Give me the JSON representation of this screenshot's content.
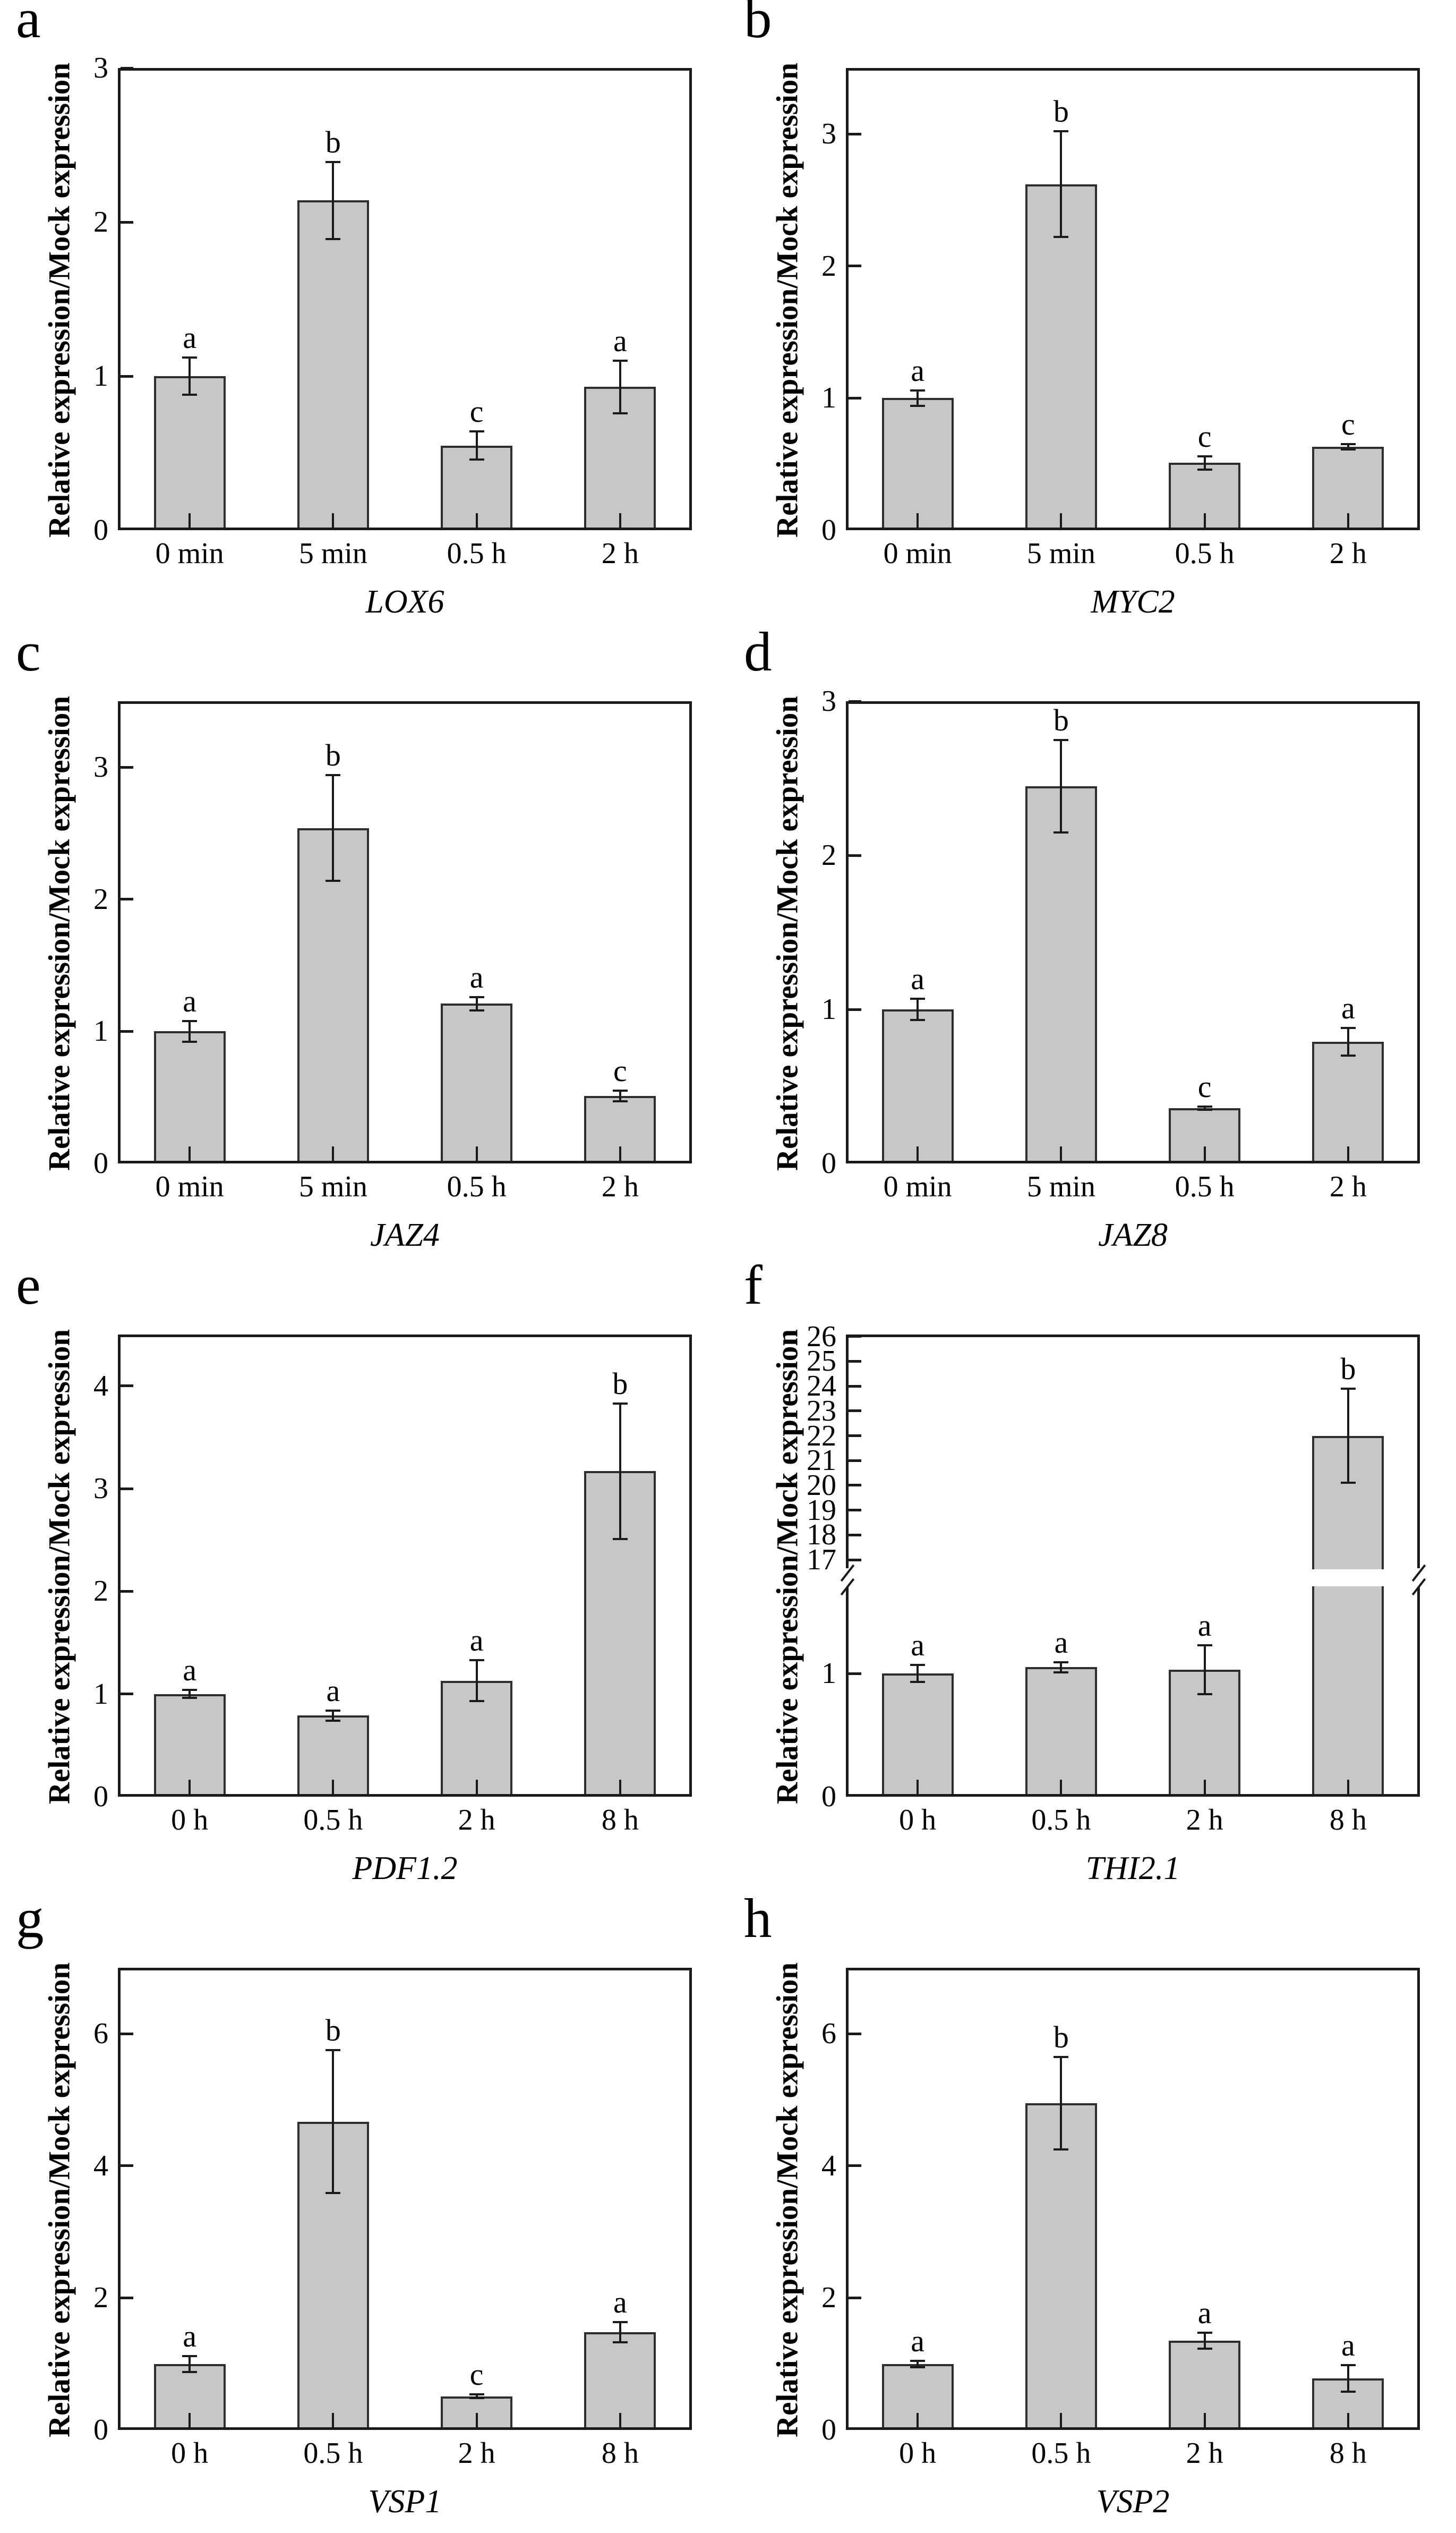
{
  "chart_data": [
    {
      "type": "bar",
      "panel_letter": "a",
      "gene": "LOX6",
      "ylabel": "Relative expression/Mock expression",
      "categories": [
        "0 min",
        "5 min",
        "0.5 h",
        "2 h"
      ],
      "values": [
        1.0,
        2.14,
        0.55,
        0.93
      ],
      "errors": [
        0.12,
        0.25,
        0.09,
        0.17
      ],
      "sig_letters": [
        "a",
        "b",
        "c",
        "a"
      ],
      "ylim": [
        0,
        3.0
      ],
      "yticks": [
        0,
        1,
        2,
        3
      ],
      "axis_break": null,
      "bar_color": "#c7c7c7"
    },
    {
      "type": "bar",
      "panel_letter": "b",
      "gene": "MYC2",
      "ylabel": "Relative expression/Mock expression",
      "categories": [
        "0 min",
        "5 min",
        "0.5 h",
        "2 h"
      ],
      "values": [
        1.0,
        2.62,
        0.51,
        0.63
      ],
      "errors": [
        0.06,
        0.4,
        0.05,
        0.02
      ],
      "sig_letters": [
        "a",
        "b",
        "c",
        "c"
      ],
      "ylim": [
        0,
        3.5
      ],
      "yticks": [
        0,
        1,
        2,
        3
      ],
      "axis_break": null,
      "bar_color": "#c7c7c7"
    },
    {
      "type": "bar",
      "panel_letter": "c",
      "gene": "JAZ4",
      "ylabel": "Relative expression/Mock expression",
      "categories": [
        "0 min",
        "5 min",
        "0.5 h",
        "2 h"
      ],
      "values": [
        1.0,
        2.54,
        1.21,
        0.51
      ],
      "errors": [
        0.08,
        0.4,
        0.05,
        0.04
      ],
      "sig_letters": [
        "a",
        "b",
        "a",
        "c"
      ],
      "ylim": [
        0,
        3.5
      ],
      "yticks": [
        0,
        1,
        2,
        3
      ],
      "axis_break": null,
      "bar_color": "#c7c7c7"
    },
    {
      "type": "bar",
      "panel_letter": "d",
      "gene": "JAZ8",
      "ylabel": "Relative expression/Mock expression",
      "categories": [
        "0 min",
        "5 min",
        "0.5 h",
        "2 h"
      ],
      "values": [
        1.0,
        2.45,
        0.36,
        0.79
      ],
      "errors": [
        0.07,
        0.3,
        0.01,
        0.09
      ],
      "sig_letters": [
        "a",
        "b",
        "c",
        "a"
      ],
      "ylim": [
        0,
        3.0
      ],
      "yticks": [
        0,
        1,
        2,
        3
      ],
      "axis_break": null,
      "bar_color": "#c7c7c7"
    },
    {
      "type": "bar",
      "panel_letter": "e",
      "gene": "PDF1.2",
      "ylabel": "Relative expression/Mock expression",
      "categories": [
        "0 h",
        "0.5 h",
        "2 h",
        "8 h"
      ],
      "values": [
        1.0,
        0.79,
        1.13,
        3.17
      ],
      "errors": [
        0.04,
        0.05,
        0.2,
        0.66
      ],
      "sig_letters": [
        "a",
        "a",
        "a",
        "b"
      ],
      "ylim": [
        0,
        4.5
      ],
      "yticks": [
        0,
        1,
        2,
        3,
        4
      ],
      "axis_break": null,
      "bar_color": "#c7c7c7"
    },
    {
      "type": "bar",
      "panel_letter": "f",
      "gene": "THI2.1",
      "ylabel": "Relative expression/Mock expression",
      "categories": [
        "0 h",
        "0.5 h",
        "2 h",
        "8 h"
      ],
      "values": [
        1.0,
        1.05,
        1.03,
        22.0
      ],
      "errors": [
        0.07,
        0.04,
        0.2,
        1.9
      ],
      "sig_letters": [
        "a",
        "a",
        "a",
        "b"
      ],
      "ylim": [
        0,
        26
      ],
      "yticks": [
        0,
        1,
        17,
        18,
        19,
        20,
        21,
        22,
        23,
        24,
        25,
        26
      ],
      "axis_break": {
        "lower_ticks": [
          0,
          1
        ],
        "upper_ticks": [
          17,
          18,
          19,
          20,
          21,
          22,
          23,
          24,
          25,
          26
        ],
        "break_between": [
          1.7,
          17
        ]
      },
      "bar_color": "#c7c7c7"
    },
    {
      "type": "bar",
      "panel_letter": "g",
      "gene": "VSP1",
      "ylabel": "Relative expression/Mock expression",
      "categories": [
        "0 h",
        "0.5 h",
        "2 h",
        "8 h"
      ],
      "values": [
        1.0,
        4.67,
        0.51,
        1.48
      ],
      "errors": [
        0.12,
        1.08,
        0.03,
        0.15
      ],
      "sig_letters": [
        "a",
        "b",
        "c",
        "a"
      ],
      "ylim": [
        0,
        7.0
      ],
      "yticks": [
        0,
        2,
        4,
        6
      ],
      "axis_break": null,
      "bar_color": "#c7c7c7"
    },
    {
      "type": "bar",
      "panel_letter": "h",
      "gene": "VSP2",
      "ylabel": "Relative expression/Mock expression",
      "categories": [
        "0 h",
        "0.5 h",
        "2 h",
        "8 h"
      ],
      "values": [
        1.0,
        4.95,
        1.35,
        0.78
      ],
      "errors": [
        0.05,
        0.7,
        0.12,
        0.2
      ],
      "sig_letters": [
        "a",
        "b",
        "a",
        "a"
      ],
      "ylim": [
        0,
        7.0
      ],
      "yticks": [
        0,
        2,
        4,
        6
      ],
      "axis_break": null,
      "bar_color": "#c7c7c7"
    }
  ],
  "colors": {
    "bar_fill": "#c7c7c7",
    "bar_border": "#2e2e2e",
    "axis": "#1a1a1a",
    "text": "#000000",
    "background": "#ffffff"
  }
}
